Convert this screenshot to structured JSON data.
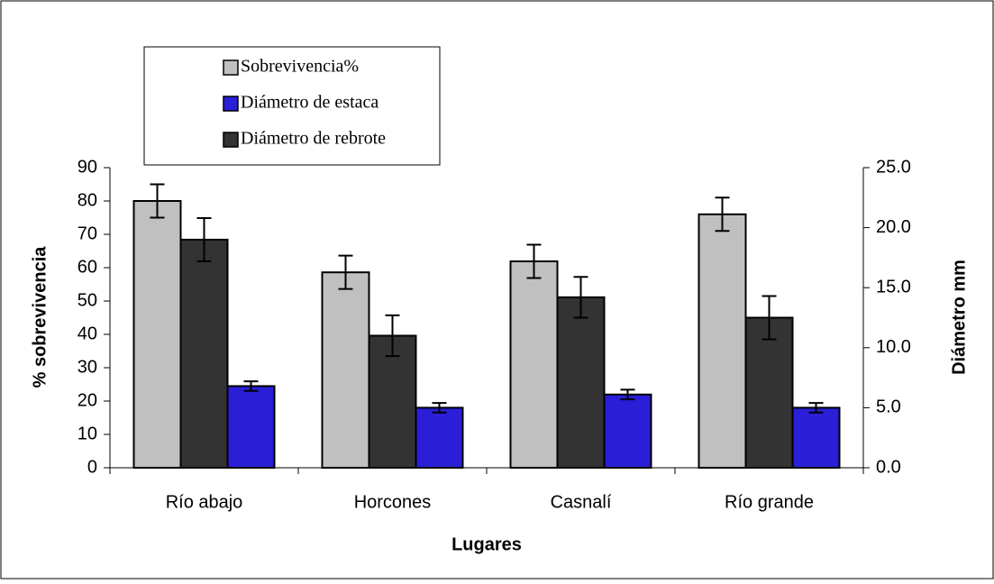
{
  "chart_data": {
    "type": "bar",
    "categories": [
      "Río abajo",
      "Horcones",
      "Casnalí",
      "Río grande"
    ],
    "series": [
      {
        "name": "Sobrevivencia%",
        "color": "#c0c0c0",
        "values": [
          80,
          58.6,
          61.9,
          76
        ],
        "errors": [
          5,
          5,
          5,
          5
        ]
      },
      {
        "name": "Diámetro de estaca",
        "color": "#2a1fd6",
        "axis": "y2",
        "values": [
          6.8,
          5.0,
          6.1,
          5.0
        ],
        "errors": [
          0.4,
          0.4,
          0.4,
          0.4
        ]
      },
      {
        "name": "Diámetro de rebrote",
        "color": "#333333",
        "axis": "y2",
        "values": [
          19.0,
          11.0,
          14.2,
          12.5
        ],
        "errors": [
          1.8,
          1.7,
          1.7,
          1.8
        ]
      }
    ],
    "ylabel": "% sobrevivencia",
    "y2label": "Diámetro mm",
    "xlabel": "Lugares",
    "ylim": [
      0,
      90
    ],
    "yticks": [
      0,
      10,
      20,
      30,
      40,
      50,
      60,
      70,
      80,
      90
    ],
    "y2lim": [
      0,
      25
    ],
    "y2ticks": [
      {
        "value": 0,
        "label": "0.0"
      },
      {
        "value": 5,
        "label": "5.0"
      },
      {
        "value": 10,
        "label": "10.0"
      },
      {
        "value": 15,
        "label": "15.0"
      },
      {
        "value": 20,
        "label": "20.0"
      },
      {
        "value": 25,
        "label": "25.0"
      }
    ],
    "legend": "upper left"
  }
}
